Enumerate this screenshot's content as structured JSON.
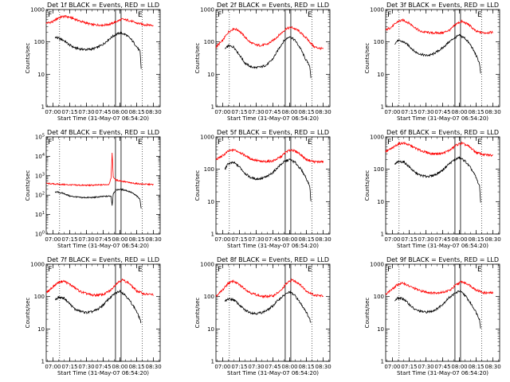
{
  "chart_data": [
    {
      "type": "line",
      "title": "Det 1f BLACK = Events, RED = LLD",
      "xlabel": "Start Time (31-May-07 06:54:20)",
      "ylabel": "Counts/sec",
      "y_scale": "log",
      "ylim": [
        1,
        1000
      ],
      "x_ticks": [
        "07:00",
        "07:15",
        "07:30",
        "07:45",
        "08:00",
        "08:15",
        "08:30"
      ],
      "y_ticks": [
        "1",
        "10",
        "100",
        "1000"
      ],
      "markers": [
        "F",
        "E"
      ],
      "series": [
        {
          "color": "#ff0000",
          "x": [
            "06:54",
            "07:00",
            "07:05",
            "07:10",
            "07:15",
            "07:25",
            "07:35",
            "07:45",
            "07:52",
            "07:57",
            "08:02",
            "08:08",
            "08:15",
            "08:22",
            "08:30"
          ],
          "y": [
            380,
            420,
            560,
            620,
            580,
            430,
            340,
            330,
            360,
            430,
            500,
            460,
            380,
            340,
            330
          ]
        },
        {
          "color": "#000000",
          "x": [
            "07:02",
            "07:05",
            "07:10",
            "07:15",
            "07:20",
            "07:25",
            "07:30",
            "07:35",
            "07:40",
            "07:45",
            "07:50",
            "07:55",
            "08:00",
            "08:05",
            "08:10",
            "08:14",
            "08:18",
            "08:19"
          ],
          "y": [
            140,
            130,
            110,
            80,
            65,
            60,
            58,
            60,
            68,
            85,
            120,
            160,
            190,
            170,
            120,
            80,
            50,
            15
          ]
        }
      ]
    },
    {
      "type": "line",
      "title": "Det 2f BLACK = Events, RED = LLD",
      "xlabel": "Start Time (31-May-07 06:54:20)",
      "ylabel": "Counts/sec",
      "y_scale": "log",
      "ylim": [
        1,
        1000
      ],
      "x_ticks": [
        "07:00",
        "07:15",
        "07:30",
        "07:45",
        "08:00",
        "08:15",
        "08:30"
      ],
      "y_ticks": [
        "1",
        "10",
        "100",
        "1000"
      ],
      "markers": [
        "F",
        "E"
      ],
      "series": [
        {
          "color": "#ff0000",
          "x": [
            "06:54",
            "07:00",
            "07:05",
            "07:10",
            "07:15",
            "07:20",
            "07:25",
            "07:30",
            "07:35",
            "07:40",
            "07:45",
            "07:52",
            "07:57",
            "08:02",
            "08:08",
            "08:15",
            "08:22",
            "08:30"
          ],
          "y": [
            70,
            110,
            200,
            260,
            220,
            140,
            95,
            80,
            78,
            85,
            110,
            180,
            260,
            280,
            220,
            130,
            70,
            60
          ]
        },
        {
          "color": "#000000",
          "x": [
            "07:02",
            "07:05",
            "07:10",
            "07:15",
            "07:20",
            "07:25",
            "07:30",
            "07:35",
            "07:40",
            "07:45",
            "07:50",
            "07:55",
            "08:00",
            "08:05",
            "08:10",
            "08:14",
            "08:18",
            "08:19"
          ],
          "y": [
            60,
            75,
            70,
            40,
            22,
            17,
            16,
            17,
            20,
            30,
            60,
            110,
            150,
            110,
            60,
            30,
            18,
            8
          ]
        }
      ]
    },
    {
      "type": "line",
      "title": "Det 3f BLACK = Events, RED = LLD",
      "xlabel": "Start Time (31-May-07 06:54:20)",
      "ylabel": "Counts/sec",
      "y_scale": "log",
      "ylim": [
        1,
        1000
      ],
      "x_ticks": [
        "07:00",
        "07:15",
        "07:30",
        "07:45",
        "08:00",
        "08:15",
        "08:30"
      ],
      "y_ticks": [
        "1",
        "10",
        "100",
        "1000"
      ],
      "markers": [
        "F",
        "E"
      ],
      "series": [
        {
          "color": "#ff0000",
          "x": [
            "06:54",
            "07:00",
            "07:05",
            "07:10",
            "07:15",
            "07:25",
            "07:35",
            "07:45",
            "07:52",
            "07:57",
            "08:02",
            "08:08",
            "08:15",
            "08:22",
            "08:30"
          ],
          "y": [
            230,
            300,
            430,
            470,
            380,
            210,
            190,
            190,
            240,
            360,
            430,
            350,
            210,
            190,
            200
          ]
        },
        {
          "color": "#000000",
          "x": [
            "07:02",
            "07:05",
            "07:10",
            "07:15",
            "07:20",
            "07:25",
            "07:30",
            "07:35",
            "07:40",
            "07:45",
            "07:50",
            "07:55",
            "08:00",
            "08:05",
            "08:10",
            "08:14",
            "08:18",
            "08:19"
          ],
          "y": [
            90,
            110,
            100,
            75,
            50,
            42,
            38,
            40,
            50,
            65,
            95,
            130,
            160,
            130,
            80,
            45,
            22,
            10
          ]
        }
      ]
    },
    {
      "type": "line",
      "title": "Det 4f BLACK = Events, RED = LLD",
      "xlabel": "Start Time (31-May-07 06:54:20)",
      "ylabel": "Counts/sec",
      "y_scale": "log",
      "ylim": [
        1,
        100000
      ],
      "x_ticks": [
        "07:00",
        "07:15",
        "07:30",
        "07:45",
        "08:00",
        "08:15",
        "08:30"
      ],
      "y_ticks": [
        "10^0",
        "10^1",
        "10^2",
        "10^3",
        "10^4",
        "10^5"
      ],
      "markers": [
        "F",
        "E"
      ],
      "series": [
        {
          "color": "#ff0000",
          "x": [
            "06:54",
            "07:00",
            "07:10",
            "07:20",
            "07:30",
            "07:40",
            "07:50",
            "07:52",
            "07:53",
            "07:54",
            "07:56",
            "08:00",
            "08:10",
            "08:20",
            "08:30"
          ],
          "y": [
            400,
            380,
            350,
            330,
            320,
            330,
            360,
            700,
            15000,
            900,
            600,
            550,
            420,
            370,
            350
          ]
        },
        {
          "color": "#000000",
          "x": [
            "07:02",
            "07:05",
            "07:10",
            "07:15",
            "07:25",
            "07:35",
            "07:45",
            "07:52",
            "07:53",
            "07:54",
            "07:56",
            "08:00",
            "08:05",
            "08:10",
            "08:15",
            "08:18",
            "08:19"
          ],
          "y": [
            150,
            140,
            120,
            90,
            75,
            75,
            85,
            90,
            30,
            120,
            180,
            200,
            180,
            140,
            90,
            60,
            20
          ]
        }
      ]
    },
    {
      "type": "line",
      "title": "Det 5f BLACK = Events, RED = LLD",
      "xlabel": "Start Time (31-May-07 06:54:20)",
      "ylabel": "Counts/sec",
      "y_scale": "log",
      "ylim": [
        1,
        1000
      ],
      "x_ticks": [
        "07:00",
        "07:15",
        "07:30",
        "07:45",
        "08:00",
        "08:15",
        "08:30"
      ],
      "y_ticks": [
        "1",
        "10",
        "100",
        "1000"
      ],
      "markers": [
        "F",
        "E"
      ],
      "series": [
        {
          "color": "#ff0000",
          "x": [
            "06:54",
            "07:00",
            "07:05",
            "07:10",
            "07:15",
            "07:25",
            "07:35",
            "07:45",
            "07:52",
            "07:57",
            "08:02",
            "08:08",
            "08:15",
            "08:22",
            "08:30"
          ],
          "y": [
            200,
            260,
            360,
            400,
            340,
            210,
            170,
            180,
            240,
            350,
            400,
            320,
            200,
            170,
            170
          ]
        },
        {
          "color": "#000000",
          "x": [
            "07:02",
            "07:05",
            "07:10",
            "07:15",
            "07:20",
            "07:25",
            "07:30",
            "07:35",
            "07:40",
            "07:45",
            "07:50",
            "07:55",
            "08:00",
            "08:05",
            "08:10",
            "08:14",
            "08:18",
            "08:19"
          ],
          "y": [
            100,
            150,
            160,
            120,
            75,
            55,
            50,
            52,
            60,
            80,
            120,
            170,
            200,
            160,
            100,
            60,
            30,
            10
          ]
        }
      ]
    },
    {
      "type": "line",
      "title": "Det 6f BLACK = Events, RED = LLD",
      "xlabel": "Start Time (31-May-07 06:54:20)",
      "ylabel": "Counts/sec",
      "y_scale": "log",
      "ylim": [
        1,
        1000
      ],
      "x_ticks": [
        "07:00",
        "07:15",
        "07:30",
        "07:45",
        "08:00",
        "08:15",
        "08:30"
      ],
      "y_ticks": [
        "1",
        "10",
        "100",
        "1000"
      ],
      "markers": [
        "F",
        "E"
      ],
      "series": [
        {
          "color": "#ff0000",
          "x": [
            "06:54",
            "07:00",
            "07:05",
            "07:10",
            "07:15",
            "07:25",
            "07:35",
            "07:45",
            "07:52",
            "07:57",
            "08:02",
            "08:08",
            "08:15",
            "08:22",
            "08:30"
          ],
          "y": [
            350,
            450,
            600,
            650,
            560,
            380,
            300,
            310,
            400,
            560,
            640,
            520,
            330,
            280,
            270
          ]
        },
        {
          "color": "#000000",
          "x": [
            "07:02",
            "07:05",
            "07:10",
            "07:15",
            "07:20",
            "07:25",
            "07:30",
            "07:35",
            "07:40",
            "07:45",
            "07:50",
            "07:55",
            "08:00",
            "08:05",
            "08:10",
            "08:14",
            "08:18",
            "08:19"
          ],
          "y": [
            140,
            170,
            170,
            120,
            80,
            65,
            60,
            62,
            72,
            95,
            140,
            190,
            230,
            180,
            110,
            65,
            30,
            10
          ]
        }
      ]
    },
    {
      "type": "line",
      "title": "Det 7f BLACK = Events, RED = LLD",
      "xlabel": "Start Time (31-May-07 06:54:20)",
      "ylabel": "Counts/sec",
      "y_scale": "log",
      "ylim": [
        1,
        1000
      ],
      "x_ticks": [
        "07:00",
        "07:15",
        "07:30",
        "07:45",
        "08:00",
        "08:15",
        "08:30"
      ],
      "y_ticks": [
        "1",
        "10",
        "100",
        "1000"
      ],
      "markers": [
        "F",
        "E"
      ],
      "series": [
        {
          "color": "#ff0000",
          "x": [
            "06:54",
            "07:00",
            "07:05",
            "07:10",
            "07:15",
            "07:25",
            "07:35",
            "07:45",
            "07:52",
            "07:57",
            "08:02",
            "08:08",
            "08:15",
            "08:22",
            "08:30"
          ],
          "y": [
            130,
            200,
            280,
            300,
            240,
            140,
            110,
            115,
            160,
            260,
            330,
            260,
            150,
            120,
            115
          ]
        },
        {
          "color": "#000000",
          "x": [
            "07:02",
            "07:05",
            "07:10",
            "07:15",
            "07:20",
            "07:25",
            "07:30",
            "07:35",
            "07:40",
            "07:45",
            "07:50",
            "07:55",
            "08:00",
            "08:05",
            "08:10",
            "08:14",
            "08:18",
            "08:19"
          ],
          "y": [
            80,
            95,
            90,
            60,
            40,
            35,
            32,
            34,
            40,
            55,
            85,
            120,
            150,
            110,
            65,
            40,
            20,
            15
          ]
        }
      ]
    },
    {
      "type": "line",
      "title": "Det 8f BLACK = Events, RED = LLD",
      "xlabel": "Start Time (31-May-07 06:54:20)",
      "ylabel": "Counts/sec",
      "y_scale": "log",
      "ylim": [
        1,
        1000
      ],
      "x_ticks": [
        "07:00",
        "07:15",
        "07:30",
        "07:45",
        "08:00",
        "08:15",
        "08:30"
      ],
      "y_ticks": [
        "1",
        "10",
        "100",
        "1000"
      ],
      "markers": [
        "F",
        "E"
      ],
      "series": [
        {
          "color": "#ff0000",
          "x": [
            "06:54",
            "07:00",
            "07:05",
            "07:10",
            "07:15",
            "07:25",
            "07:35",
            "07:45",
            "07:52",
            "07:57",
            "08:02",
            "08:08",
            "08:15",
            "08:22",
            "08:30"
          ],
          "y": [
            100,
            160,
            260,
            300,
            230,
            130,
            100,
            105,
            150,
            250,
            330,
            260,
            150,
            110,
            105
          ]
        },
        {
          "color": "#000000",
          "x": [
            "07:02",
            "07:05",
            "07:10",
            "07:15",
            "07:20",
            "07:25",
            "07:30",
            "07:35",
            "07:40",
            "07:45",
            "07:50",
            "07:55",
            "08:00",
            "08:05",
            "08:10",
            "08:14",
            "08:18",
            "08:19"
          ],
          "y": [
            70,
            85,
            80,
            55,
            38,
            32,
            30,
            32,
            38,
            52,
            80,
            110,
            140,
            105,
            60,
            38,
            20,
            15
          ]
        }
      ]
    },
    {
      "type": "line",
      "title": "Det 9f BLACK = Events, RED = LLD",
      "xlabel": "Start Time (31-May-07 06:54:20)",
      "ylabel": "Counts/sec",
      "y_scale": "log",
      "ylim": [
        1,
        1000
      ],
      "x_ticks": [
        "07:00",
        "07:15",
        "07:30",
        "07:45",
        "08:00",
        "08:15",
        "08:30"
      ],
      "y_ticks": [
        "1",
        "10",
        "100",
        "1000"
      ],
      "markers": [
        "F",
        "E"
      ],
      "series": [
        {
          "color": "#ff0000",
          "x": [
            "06:54",
            "07:00",
            "07:05",
            "07:10",
            "07:15",
            "07:25",
            "07:35",
            "07:45",
            "07:52",
            "07:57",
            "08:02",
            "08:08",
            "08:15",
            "08:22",
            "08:30"
          ],
          "y": [
            120,
            170,
            240,
            260,
            210,
            150,
            130,
            135,
            160,
            230,
            290,
            240,
            160,
            130,
            130
          ]
        },
        {
          "color": "#000000",
          "x": [
            "07:02",
            "07:05",
            "07:10",
            "07:15",
            "07:20",
            "07:25",
            "07:30",
            "07:35",
            "07:40",
            "07:45",
            "07:50",
            "07:55",
            "08:00",
            "08:05",
            "08:10",
            "08:14",
            "08:18",
            "08:19"
          ],
          "y": [
            75,
            90,
            85,
            58,
            40,
            35,
            33,
            35,
            42,
            58,
            88,
            120,
            150,
            110,
            62,
            38,
            20,
            10
          ]
        }
      ]
    }
  ]
}
